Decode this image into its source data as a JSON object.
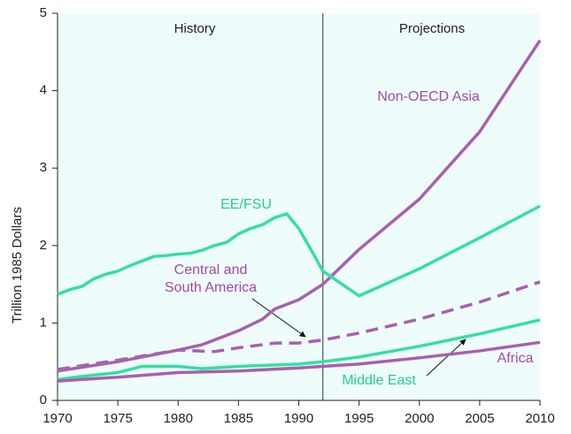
{
  "chart_data": {
    "type": "line",
    "y_label": "Trillion 1985 Dollars",
    "annotations": [
      "History",
      "Projections"
    ],
    "divider": 1992,
    "xlim": [
      1970,
      2010
    ],
    "xticks": [
      1970,
      1975,
      1980,
      1985,
      1990,
      1995,
      2000,
      2005,
      2010
    ],
    "ylim": [
      0,
      5
    ],
    "yticks": [
      0,
      1,
      2,
      3,
      4,
      5
    ],
    "series": [
      {
        "name": "Non-OECD Asia",
        "color": "#a860b0",
        "dashed": false,
        "x": [
          1970,
          1975,
          1980,
          1982,
          1985,
          1987,
          1988,
          1990,
          1992,
          1995,
          2000,
          2005,
          2010
        ],
        "values": [
          0.38,
          0.5,
          0.65,
          0.72,
          0.9,
          1.05,
          1.18,
          1.3,
          1.5,
          1.95,
          2.6,
          3.47,
          4.65
        ]
      },
      {
        "name": "EE/FSU",
        "color": "#33e0a0",
        "dashed": false,
        "x": [
          1970,
          1971,
          1972,
          1973,
          1974,
          1975,
          1976,
          1977,
          1978,
          1979,
          1980,
          1981,
          1982,
          1983,
          1984,
          1985,
          1986,
          1987,
          1988,
          1989,
          1990,
          1991,
          1992,
          1995,
          2000,
          2005,
          2010
        ],
        "values": [
          1.37,
          1.43,
          1.47,
          1.57,
          1.63,
          1.67,
          1.74,
          1.8,
          1.86,
          1.87,
          1.89,
          1.9,
          1.94,
          2.0,
          2.04,
          2.15,
          2.22,
          2.27,
          2.36,
          2.41,
          2.22,
          1.95,
          1.67,
          1.35,
          1.7,
          2.1,
          2.51
        ]
      },
      {
        "name": "Central and\nSouth America",
        "color": "#a860b0",
        "dashed": true,
        "x": [
          1970,
          1975,
          1980,
          1983,
          1985,
          1988,
          1990,
          1992,
          1995,
          2000,
          2005,
          2010
        ],
        "values": [
          0.4,
          0.52,
          0.65,
          0.63,
          0.68,
          0.74,
          0.74,
          0.78,
          0.87,
          1.05,
          1.27,
          1.53
        ]
      },
      {
        "name": "Middle East",
        "color": "#33e0a0",
        "dashed": false,
        "x": [
          1970,
          1972,
          1975,
          1977,
          1980,
          1982,
          1985,
          1990,
          1992,
          1995,
          2000,
          2005,
          2010
        ],
        "values": [
          0.27,
          0.31,
          0.36,
          0.44,
          0.44,
          0.41,
          0.44,
          0.47,
          0.5,
          0.56,
          0.7,
          0.86,
          1.04
        ]
      },
      {
        "name": "Africa",
        "color": "#a860b0",
        "dashed": false,
        "x": [
          1970,
          1975,
          1980,
          1985,
          1990,
          1992,
          1995,
          2000,
          2005,
          2010
        ],
        "values": [
          0.25,
          0.3,
          0.36,
          0.38,
          0.42,
          0.44,
          0.47,
          0.55,
          0.64,
          0.75
        ]
      }
    ]
  }
}
